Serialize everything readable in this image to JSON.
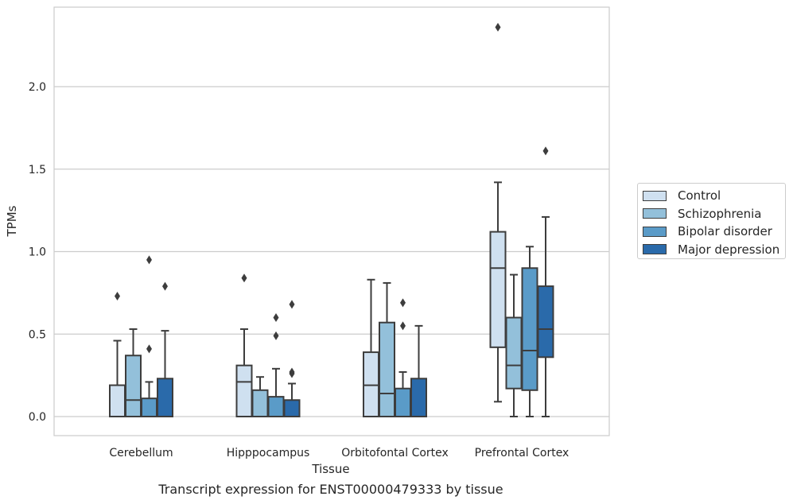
{
  "caption": "Transcript expression for ENST00000479333 by tissue",
  "chart_data": {
    "type": "box",
    "xlabel": "Tissue",
    "ylabel": "TPMs",
    "ylim": [
      -0.11,
      2.48
    ],
    "yticks": [
      0.0,
      0.5,
      1.0,
      1.5,
      2.0
    ],
    "ytick_labels": [
      "0.0",
      "0.5",
      "1.0",
      "1.5",
      "2.0"
    ],
    "grid": "horizontal",
    "legend_placement": "right",
    "categories": [
      "Cerebellum",
      "Hipppocampus",
      "Orbitofontal Cortex",
      "Prefrontal Cortex"
    ],
    "series": [
      {
        "name": "Control",
        "color": "#cfe0f0",
        "boxes": [
          {
            "whislo": 0.0,
            "q1": 0.0,
            "med": 0.0,
            "q3": 0.19,
            "whishi": 0.46,
            "fliers": [
              0.73
            ]
          },
          {
            "whislo": 0.0,
            "q1": 0.0,
            "med": 0.21,
            "q3": 0.31,
            "whishi": 0.53,
            "fliers": [
              0.84
            ]
          },
          {
            "whislo": 0.0,
            "q1": 0.0,
            "med": 0.19,
            "q3": 0.39,
            "whishi": 0.83,
            "fliers": []
          },
          {
            "whislo": 0.09,
            "q1": 0.42,
            "med": 0.9,
            "q3": 1.12,
            "whishi": 1.42,
            "fliers": [
              2.36
            ]
          }
        ]
      },
      {
        "name": "Schizophrenia",
        "color": "#93c0da",
        "boxes": [
          {
            "whislo": 0.0,
            "q1": 0.0,
            "med": 0.1,
            "q3": 0.37,
            "whishi": 0.53,
            "fliers": []
          },
          {
            "whislo": 0.0,
            "q1": 0.0,
            "med": 0.0,
            "q3": 0.16,
            "whishi": 0.24,
            "fliers": []
          },
          {
            "whislo": 0.0,
            "q1": 0.0,
            "med": 0.14,
            "q3": 0.57,
            "whishi": 0.81,
            "fliers": []
          },
          {
            "whislo": 0.0,
            "q1": 0.17,
            "med": 0.31,
            "q3": 0.6,
            "whishi": 0.86,
            "fliers": []
          }
        ]
      },
      {
        "name": "Bipolar disorder",
        "color": "#5a9bc8",
        "boxes": [
          {
            "whislo": 0.0,
            "q1": 0.0,
            "med": 0.0,
            "q3": 0.11,
            "whishi": 0.21,
            "fliers": [
              0.41,
              0.95
            ]
          },
          {
            "whislo": 0.0,
            "q1": 0.0,
            "med": 0.0,
            "q3": 0.12,
            "whishi": 0.29,
            "fliers": [
              0.49,
              0.6
            ]
          },
          {
            "whislo": 0.0,
            "q1": 0.0,
            "med": 0.0,
            "q3": 0.17,
            "whishi": 0.27,
            "fliers": [
              0.55,
              0.69
            ]
          },
          {
            "whislo": 0.0,
            "q1": 0.16,
            "med": 0.4,
            "q3": 0.9,
            "whishi": 1.03,
            "fliers": []
          }
        ]
      },
      {
        "name": "Major depression",
        "color": "#2a6aaa",
        "boxes": [
          {
            "whislo": 0.0,
            "q1": 0.0,
            "med": 0.0,
            "q3": 0.23,
            "whishi": 0.52,
            "fliers": [
              0.79
            ]
          },
          {
            "whislo": 0.0,
            "q1": 0.0,
            "med": 0.0,
            "q3": 0.1,
            "whishi": 0.2,
            "fliers": [
              0.26,
              0.27,
              0.68
            ]
          },
          {
            "whislo": 0.0,
            "q1": 0.0,
            "med": 0.0,
            "q3": 0.23,
            "whishi": 0.55,
            "fliers": []
          },
          {
            "whislo": 0.0,
            "q1": 0.36,
            "med": 0.53,
            "q3": 0.79,
            "whishi": 1.21,
            "fliers": [
              1.61
            ]
          }
        ]
      }
    ]
  }
}
